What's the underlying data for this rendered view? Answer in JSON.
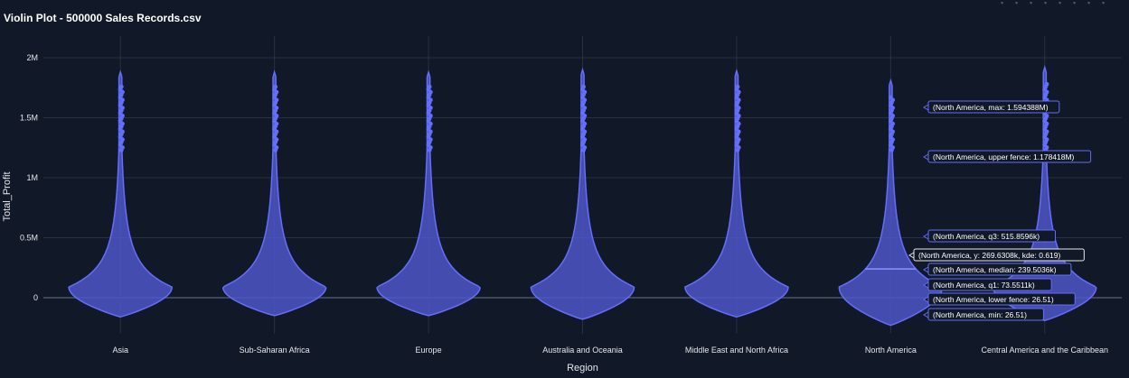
{
  "title": "Violin Plot - 500000 Sales Records.csv",
  "modebar": [
    "camera-icon",
    "zoom-icon",
    "pan-icon",
    "zoom-in-icon",
    "zoom-out-icon",
    "autoscale-icon",
    "reset-icon",
    "fullscreen-icon"
  ],
  "chart_data": {
    "type": "violin",
    "xlabel": "Region",
    "ylabel": "Total_Profit",
    "ylim": [
      -250000,
      2100000
    ],
    "y_ticks": [
      {
        "value": 0,
        "label": "0"
      },
      {
        "value": 500000,
        "label": "0.5M"
      },
      {
        "value": 1000000,
        "label": "1M"
      },
      {
        "value": 1500000,
        "label": "1.5M"
      },
      {
        "value": 2000000,
        "label": "2M"
      }
    ],
    "categories": [
      "Asia",
      "Sub-Saharan Africa",
      "Europe",
      "Australia and Oceania",
      "Middle East and North Africa",
      "North America",
      "Central America and the Caribbean"
    ],
    "color": "#636efa",
    "fill_color": "#4e56c9",
    "grid": true,
    "series": [
      {
        "region": "Asia",
        "min_extent": -160000,
        "max_extent": 1880000,
        "bulge_center": 90000,
        "bulge_width": 0.67
      },
      {
        "region": "Sub-Saharan Africa",
        "min_extent": -150000,
        "max_extent": 1880000,
        "bulge_center": 90000,
        "bulge_width": 0.67
      },
      {
        "region": "Europe",
        "min_extent": -150000,
        "max_extent": 1880000,
        "bulge_center": 90000,
        "bulge_width": 0.67
      },
      {
        "region": "Australia and Oceania",
        "min_extent": -180000,
        "max_extent": 1900000,
        "bulge_center": 90000,
        "bulge_width": 0.67
      },
      {
        "region": "Middle East and North Africa",
        "min_extent": -160000,
        "max_extent": 1890000,
        "bulge_center": 90000,
        "bulge_width": 0.67
      },
      {
        "region": "North America",
        "min_extent": -230000,
        "max_extent": 1810000,
        "bulge_center": 90000,
        "bulge_width": 0.67
      },
      {
        "region": "Central America and the Caribbean",
        "min_extent": -190000,
        "max_extent": 1920000,
        "bulge_center": 90000,
        "bulge_width": 0.67
      }
    ],
    "hover": {
      "region": "North America",
      "labels": [
        {
          "text": "(North America, max: 1.594388M)",
          "value": 1594388
        },
        {
          "text": "(North America, upper fence: 1.178418M)",
          "value": 1178418
        },
        {
          "text": "(North America, q3: 515.8596k)",
          "value": 515859.6
        },
        {
          "text": "(North America, y: 269.6308k, kde: 0.619)",
          "value": 269630.8
        },
        {
          "text": "(North America, median: 239.5036k)",
          "value": 239503.6
        },
        {
          "text": "(North America, q1: 73.5511k)",
          "value": 73551.1
        },
        {
          "text": "(North America, lower fence: 26.51)",
          "value": 26.51
        },
        {
          "text": "(North America, min: 26.51)",
          "value": 26.51
        }
      ]
    }
  }
}
